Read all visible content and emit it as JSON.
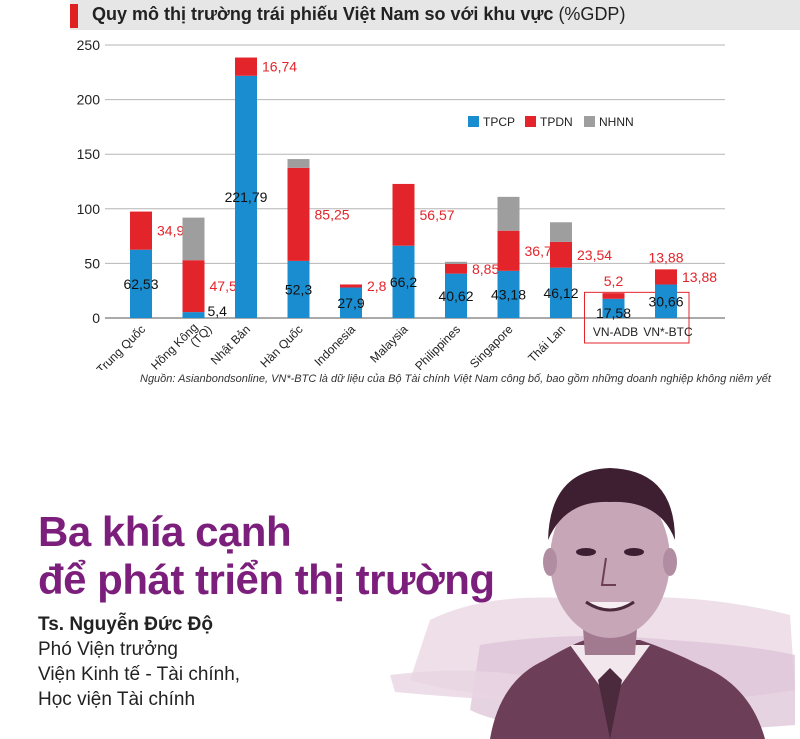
{
  "chart_data": {
    "type": "bar",
    "stacked": true,
    "title": "Quy mô thị trường trái phiếu Việt Nam so với khu vực",
    "title_unit": "(%GDP)",
    "categories": [
      "Trung Quốc",
      "Hồng Kông (TQ)",
      "Nhật Bản",
      "Hàn Quốc",
      "Indonesia",
      "Malaysia",
      "Philippines",
      "Singapore",
      "Thái Lan",
      "VN-ADB",
      "VN*-BTC"
    ],
    "series": [
      {
        "name": "TPCP",
        "color": "#1a8dd0",
        "values": [
          62.53,
          5.4,
          221.79,
          52.3,
          27.9,
          66.2,
          40.62,
          43.18,
          46.12,
          17.58,
          30.66
        ]
      },
      {
        "name": "TPDN",
        "color": "#e3242b",
        "values": [
          34.94,
          47.53,
          16.74,
          85.25,
          2.8,
          56.57,
          8.85,
          36.76,
          23.54,
          5.2,
          13.88
        ]
      },
      {
        "name": "NHNN",
        "color": "#9e9e9e",
        "values": [
          0,
          39,
          0,
          8,
          0,
          0,
          2,
          31,
          18,
          0,
          0
        ]
      }
    ],
    "data_labels": {
      "tpcp": [
        "62,53",
        "5,4",
        "221,79",
        "52,3",
        "27,9",
        "66,2",
        "40,62",
        "43,18",
        "46,12",
        "17,58",
        "30,66"
      ],
      "tpdn": [
        "34,94",
        "47,53",
        "16,74",
        "85,25",
        "2,8",
        "56,57",
        "8,85",
        "36,76",
        "23,54",
        "5,2",
        "13,88"
      ]
    },
    "yticks": [
      "0",
      "50",
      "100",
      "150",
      "200",
      "250"
    ],
    "ylim": [
      0,
      250
    ],
    "legend_position": "inside-right",
    "highlighted_categories": [
      "VN-ADB",
      "VN*-BTC"
    ],
    "grid": true
  },
  "source_note": "Nguồn: Asianbondsonline, VN*-BTC là dữ liệu của Bộ Tài chính Việt Nam công bố, bao gồm những doanh nghiệp không niêm yết",
  "article": {
    "title_line1": "Ba khía cạnh",
    "title_line2": "để phát triển thị trường",
    "author_name": "Ts. Nguyễn Đức Độ",
    "author_role": "Phó Viện trưởng",
    "author_org1": "Viện Kinh tế - Tài chính,",
    "author_org2": "Học viện Tài chính"
  },
  "colors": {
    "title_purple": "#7c1f7c",
    "accent_red": "#e02020",
    "header_gray": "#e6e6e6"
  }
}
